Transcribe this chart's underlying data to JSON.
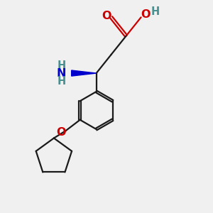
{
  "bg_color": "#f0f0f0",
  "bond_color": "#1a1a1a",
  "o_color": "#cc0000",
  "n_blue_color": "#0000cc",
  "h_teal_color": "#4a9090",
  "figsize": [
    3.0,
    3.0
  ],
  "dpi": 100,
  "xlim": [
    -1.0,
    5.5
  ],
  "ylim": [
    -3.5,
    4.5
  ]
}
